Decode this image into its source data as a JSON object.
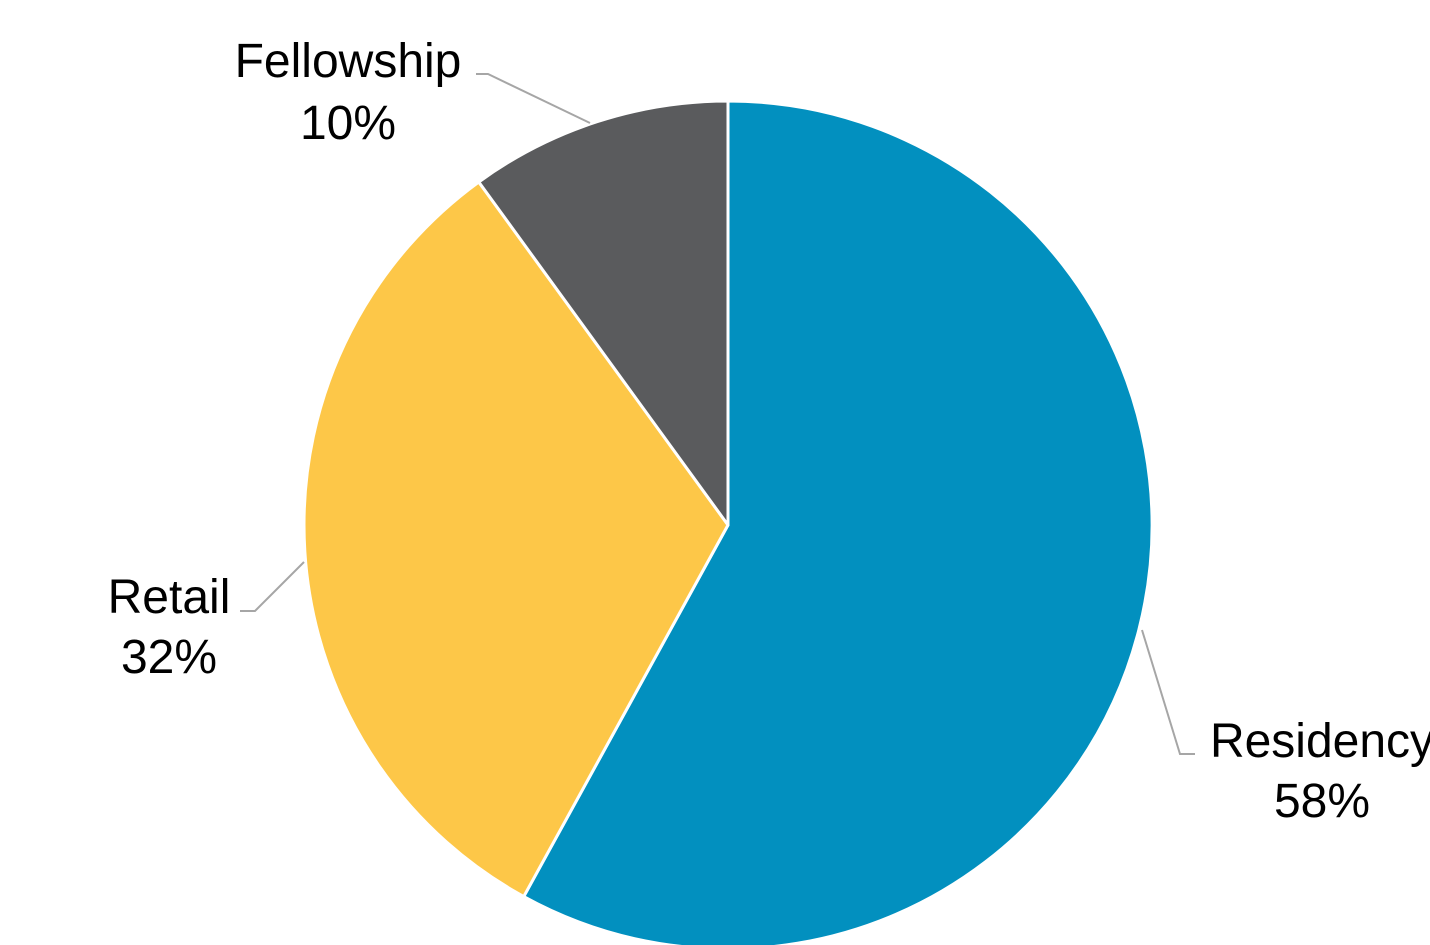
{
  "chart_data": {
    "type": "pie",
    "title": "",
    "categories": [
      "Residency",
      "Retail",
      "Fellowship"
    ],
    "values": [
      58,
      32,
      10
    ],
    "percent_labels": [
      "58%",
      "32%",
      "10%"
    ],
    "colors": [
      "#0290bf",
      "#fdc748",
      "#5a5b5d"
    ],
    "start_angle_deg": 0,
    "direction": "clockwise",
    "legend": "none",
    "data_labels": "outside with leader lines"
  }
}
